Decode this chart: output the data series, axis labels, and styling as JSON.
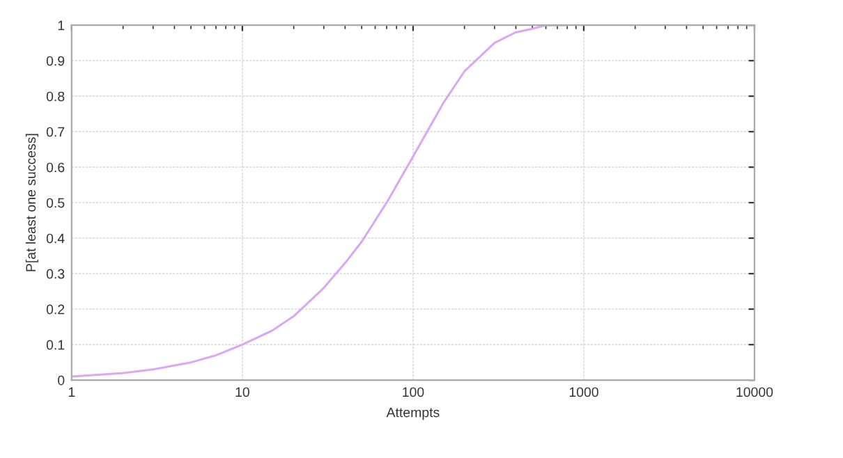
{
  "chart_data": {
    "type": "line",
    "xlabel": "Attempts",
    "ylabel": "P[at least one success]",
    "x": [
      1,
      2,
      3,
      5,
      7,
      10,
      15,
      20,
      30,
      40,
      50,
      70,
      100,
      150,
      200,
      300,
      400,
      500,
      600,
      800
    ],
    "series": [
      {
        "color": "#d9a8f0",
        "values": [
          0.01,
          0.02,
          0.03,
          0.05,
          0.07,
          0.1,
          0.14,
          0.18,
          0.26,
          0.33,
          0.39,
          0.5,
          0.63,
          0.78,
          0.87,
          0.95,
          0.98,
          0.99,
          1.0,
          1.0
        ]
      }
    ],
    "log": "x",
    "xlim": [
      1,
      10000
    ],
    "xticks": [
      1,
      10,
      100,
      1000,
      10000
    ],
    "ylim": [
      0,
      1
    ],
    "yticks": [
      0,
      0.1,
      0.2,
      0.3,
      0.4,
      0.5,
      0.6,
      0.7,
      0.8,
      0.9,
      1
    ],
    "grid": true,
    "line_style": "solid"
  }
}
